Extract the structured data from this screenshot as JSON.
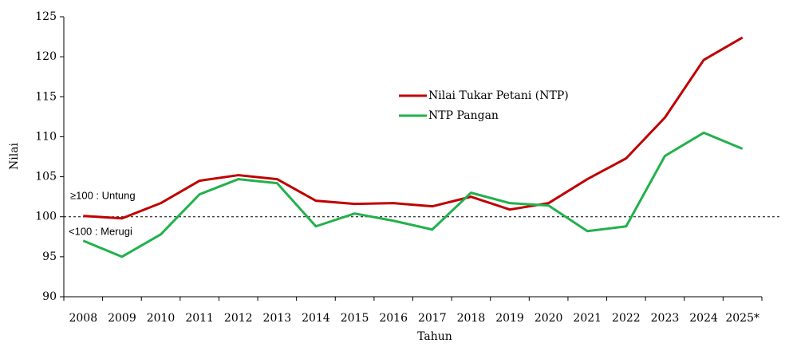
{
  "chart_data": {
    "type": "line",
    "categories": [
      "2008",
      "2009",
      "2010",
      "2011",
      "2012",
      "2013",
      "2014",
      "2015",
      "2016",
      "2017",
      "2018",
      "2019",
      "2020",
      "2021",
      "2022",
      "2023",
      "2024",
      "2025*"
    ],
    "series": [
      {
        "name": "Nilai Tukar Petani (NTP)",
        "color": "#c00000",
        "values": [
          100.1,
          99.8,
          101.7,
          104.5,
          105.2,
          104.7,
          102.0,
          101.6,
          101.7,
          101.3,
          102.5,
          100.9,
          101.7,
          104.7,
          107.3,
          112.4,
          119.6,
          122.4
        ]
      },
      {
        "name": "NTP Pangan",
        "color": "#22b14c",
        "values": [
          97.0,
          95.0,
          97.8,
          102.8,
          104.7,
          104.2,
          98.8,
          100.4,
          99.5,
          98.4,
          103.0,
          101.7,
          101.4,
          98.2,
          98.8,
          107.6,
          110.5,
          108.5
        ]
      }
    ],
    "x_label": "Tahun",
    "y_label": "Nilai",
    "ylim": [
      90,
      125
    ],
    "yticks": [
      90,
      95,
      100,
      105,
      110,
      115,
      120,
      125
    ],
    "reference_line": 100,
    "annotations": [
      "≥100 : Untung",
      "<100 : Merugi"
    ],
    "grid": false
  }
}
